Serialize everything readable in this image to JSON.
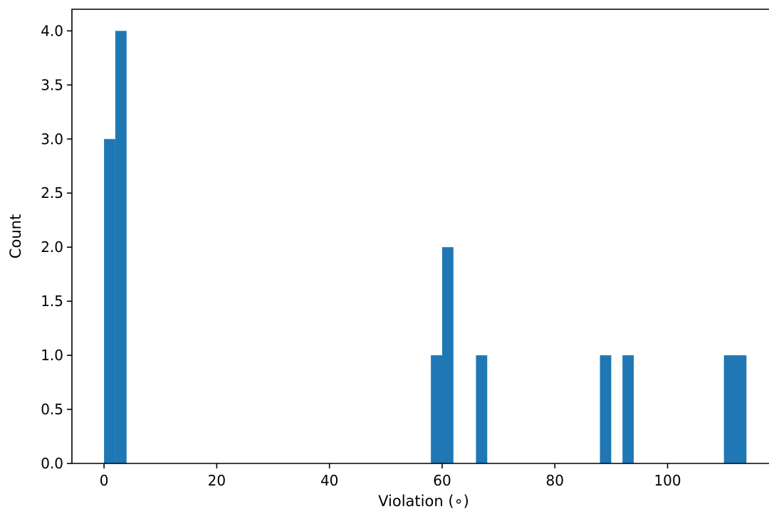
{
  "chart_data": {
    "type": "bar",
    "title": "",
    "xlabel": "Violation (∘)",
    "ylabel": "Count",
    "xlim": [
      -5.7,
      118
    ],
    "ylim": [
      0,
      4.2
    ],
    "bin_width": 2,
    "bars": [
      {
        "x_start": 0,
        "x_end": 2,
        "count": 3
      },
      {
        "x_start": 2,
        "x_end": 4,
        "count": 4
      },
      {
        "x_start": 58,
        "x_end": 60,
        "count": 1
      },
      {
        "x_start": 60,
        "x_end": 62,
        "count": 2
      },
      {
        "x_start": 66,
        "x_end": 68,
        "count": 1
      },
      {
        "x_start": 88,
        "x_end": 90,
        "count": 1
      },
      {
        "x_start": 92,
        "x_end": 94,
        "count": 1
      },
      {
        "x_start": 110,
        "x_end": 112,
        "count": 1
      },
      {
        "x_start": 112,
        "x_end": 114,
        "count": 1
      }
    ],
    "x_ticks": [
      0,
      20,
      40,
      60,
      80,
      100
    ],
    "x_tick_labels": [
      "0",
      "20",
      "40",
      "60",
      "80",
      "100"
    ],
    "y_ticks": [
      0,
      0.5,
      1,
      1.5,
      2,
      2.5,
      3,
      3.5,
      4
    ],
    "y_tick_labels": [
      "0.0",
      "0.5",
      "1.0",
      "1.5",
      "2.0",
      "2.5",
      "3.0",
      "3.5",
      "4.0"
    ],
    "bar_color": "#1f77b4",
    "grid": false,
    "legend": "none"
  }
}
